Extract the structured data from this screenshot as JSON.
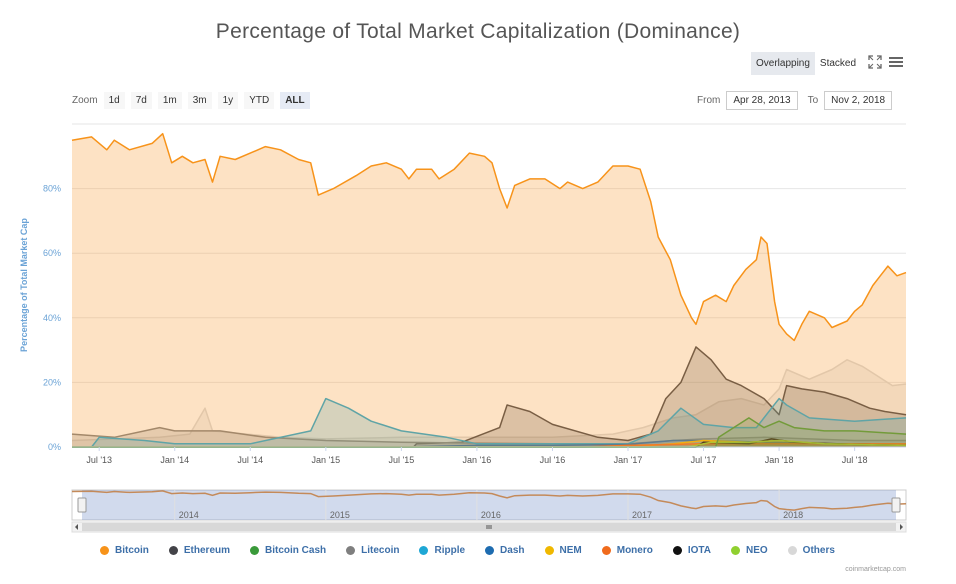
{
  "page": {
    "title": "Percentage of Total Market Capitalization (Dominance)"
  },
  "toolbar": {
    "modes": [
      {
        "label": "Overlapping",
        "active": true
      },
      {
        "label": "Stacked",
        "active": false
      }
    ],
    "icons": [
      "fullscreen-icon",
      "menu-icon"
    ]
  },
  "zoom": {
    "label": "Zoom",
    "buttons": [
      {
        "label": "1d",
        "active": false
      },
      {
        "label": "7d",
        "active": false
      },
      {
        "label": "1m",
        "active": false
      },
      {
        "label": "3m",
        "active": false
      },
      {
        "label": "1y",
        "active": false
      },
      {
        "label": "YTD",
        "active": false
      },
      {
        "label": "ALL",
        "active": true
      }
    ]
  },
  "range": {
    "from_label": "From",
    "from_value": "Apr 28, 2013",
    "to_label": "To",
    "to_value": "Nov 2, 2018"
  },
  "credits": "coinmarketcap.com",
  "chart_data": {
    "type": "area",
    "title": "Percentage of Total Market Capitalization (Dominance)",
    "ylabel": "Percentage of Total Market Cap",
    "xlabel": "",
    "x_start": 2013.32,
    "x_end": 2018.84,
    "ylim": [
      0,
      100
    ],
    "y_ticks": [
      {
        "value": 0,
        "label": "0%"
      },
      {
        "value": 20,
        "label": "20%"
      },
      {
        "value": 40,
        "label": "40%"
      },
      {
        "value": 60,
        "label": "60%"
      },
      {
        "value": 80,
        "label": "80%"
      }
    ],
    "x_ticks": [
      {
        "value": 2013.5,
        "label": "Jul '13"
      },
      {
        "value": 2014.0,
        "label": "Jan '14"
      },
      {
        "value": 2014.5,
        "label": "Jul '14"
      },
      {
        "value": 2015.0,
        "label": "Jan '15"
      },
      {
        "value": 2015.5,
        "label": "Jul '15"
      },
      {
        "value": 2016.0,
        "label": "Jan '16"
      },
      {
        "value": 2016.5,
        "label": "Jul '16"
      },
      {
        "value": 2017.0,
        "label": "Jan '17"
      },
      {
        "value": 2017.5,
        "label": "Jul '17"
      },
      {
        "value": 2018.0,
        "label": "Jan '18"
      },
      {
        "value": 2018.5,
        "label": "Jul '18"
      }
    ],
    "navigator_ticks": [
      {
        "value": 2014.0,
        "label": "2014"
      },
      {
        "value": 2015.0,
        "label": "2015"
      },
      {
        "value": 2016.0,
        "label": "2016"
      },
      {
        "value": 2017.0,
        "label": "2017"
      },
      {
        "value": 2018.0,
        "label": "2018"
      }
    ],
    "series": [
      {
        "name": "Others",
        "color": "#d8d8d8",
        "fill": "rgba(216,216,216,0.35)",
        "points": [
          [
            2013.32,
            2
          ],
          [
            2013.9,
            3
          ],
          [
            2014.1,
            4
          ],
          [
            2014.2,
            12
          ],
          [
            2014.25,
            5
          ],
          [
            2014.7,
            3
          ],
          [
            2015.0,
            2.5
          ],
          [
            2015.5,
            3
          ],
          [
            2016.0,
            3
          ],
          [
            2016.5,
            3
          ],
          [
            2016.9,
            4
          ],
          [
            2017.1,
            6
          ],
          [
            2017.3,
            9
          ],
          [
            2017.45,
            10
          ],
          [
            2017.6,
            14
          ],
          [
            2017.75,
            15
          ],
          [
            2017.9,
            13
          ],
          [
            2018.0,
            18
          ],
          [
            2018.05,
            24
          ],
          [
            2018.2,
            21
          ],
          [
            2018.35,
            24
          ],
          [
            2018.45,
            27
          ],
          [
            2018.55,
            25
          ],
          [
            2018.65,
            22
          ],
          [
            2018.75,
            19
          ],
          [
            2018.84,
            19.5
          ]
        ]
      },
      {
        "name": "Ethereum",
        "color": "#434348",
        "fill": "rgba(67,67,72,0.25)",
        "points": [
          [
            2013.32,
            0
          ],
          [
            2015.58,
            0
          ],
          [
            2015.6,
            1
          ],
          [
            2015.9,
            1.5
          ],
          [
            2016.15,
            6
          ],
          [
            2016.2,
            13
          ],
          [
            2016.35,
            11
          ],
          [
            2016.5,
            7
          ],
          [
            2016.8,
            3
          ],
          [
            2017.0,
            2
          ],
          [
            2017.15,
            4
          ],
          [
            2017.25,
            15
          ],
          [
            2017.35,
            20
          ],
          [
            2017.45,
            31
          ],
          [
            2017.55,
            27
          ],
          [
            2017.65,
            21
          ],
          [
            2017.75,
            19
          ],
          [
            2017.9,
            15
          ],
          [
            2018.0,
            10
          ],
          [
            2018.05,
            19
          ],
          [
            2018.15,
            18
          ],
          [
            2018.3,
            17
          ],
          [
            2018.45,
            15
          ],
          [
            2018.6,
            12
          ],
          [
            2018.7,
            11
          ],
          [
            2018.84,
            10
          ]
        ]
      },
      {
        "name": "Litecoin",
        "color": "#7f7f7f",
        "fill": "rgba(127,127,127,0.25)",
        "points": [
          [
            2013.32,
            4
          ],
          [
            2013.6,
            3
          ],
          [
            2013.9,
            6
          ],
          [
            2014.0,
            5
          ],
          [
            2014.3,
            5
          ],
          [
            2014.6,
            3
          ],
          [
            2015.0,
            2
          ],
          [
            2015.5,
            1.5
          ],
          [
            2016.0,
            1.2
          ],
          [
            2016.5,
            1
          ],
          [
            2017.0,
            1
          ],
          [
            2017.3,
            2
          ],
          [
            2017.5,
            2.5
          ],
          [
            2017.9,
            3
          ],
          [
            2018.2,
            2.5
          ],
          [
            2018.5,
            2
          ],
          [
            2018.84,
            2
          ]
        ]
      },
      {
        "name": "Ripple",
        "color": "#1ea7d5",
        "fill": "rgba(30,167,213,0.25)",
        "points": [
          [
            2013.32,
            0
          ],
          [
            2013.45,
            0
          ],
          [
            2013.5,
            3
          ],
          [
            2013.8,
            2
          ],
          [
            2014.0,
            1
          ],
          [
            2014.5,
            1
          ],
          [
            2014.9,
            5
          ],
          [
            2015.0,
            15
          ],
          [
            2015.15,
            12
          ],
          [
            2015.3,
            8
          ],
          [
            2015.5,
            5
          ],
          [
            2015.8,
            3
          ],
          [
            2016.0,
            1
          ],
          [
            2016.5,
            1
          ],
          [
            2017.0,
            1
          ],
          [
            2017.2,
            5
          ],
          [
            2017.35,
            12
          ],
          [
            2017.5,
            7
          ],
          [
            2017.7,
            6
          ],
          [
            2017.85,
            6
          ],
          [
            2017.95,
            12
          ],
          [
            2018.0,
            15
          ],
          [
            2018.05,
            13
          ],
          [
            2018.2,
            9
          ],
          [
            2018.5,
            8
          ],
          [
            2018.84,
            9
          ]
        ]
      },
      {
        "name": "Dash",
        "color": "#1e6cb0",
        "fill": "rgba(30,108,176,0.2)",
        "points": [
          [
            2013.32,
            0
          ],
          [
            2015.5,
            0
          ],
          [
            2016.0,
            0.5
          ],
          [
            2016.5,
            0.5
          ],
          [
            2017.0,
            0.8
          ],
          [
            2017.3,
            2
          ],
          [
            2017.5,
            2
          ],
          [
            2017.9,
            1.5
          ],
          [
            2018.3,
            1
          ],
          [
            2018.84,
            0.8
          ]
        ]
      },
      {
        "name": "NEM",
        "color": "#f0b800",
        "fill": "rgba(240,184,0,0.2)",
        "points": [
          [
            2013.32,
            0
          ],
          [
            2017.0,
            0
          ],
          [
            2017.3,
            1
          ],
          [
            2017.5,
            2
          ],
          [
            2017.8,
            1.5
          ],
          [
            2018.0,
            2
          ],
          [
            2018.3,
            1
          ],
          [
            2018.84,
            0.5
          ]
        ]
      },
      {
        "name": "Monero",
        "color": "#f06b1d",
        "fill": "rgba(240,107,29,0.2)",
        "points": [
          [
            2013.32,
            0
          ],
          [
            2016.7,
            0
          ],
          [
            2017.0,
            0.5
          ],
          [
            2017.5,
            1
          ],
          [
            2018.0,
            1
          ],
          [
            2018.84,
            1
          ]
        ]
      },
      {
        "name": "IOTA",
        "color": "#111111",
        "fill": "rgba(17,17,17,0.2)",
        "points": [
          [
            2013.32,
            0
          ],
          [
            2017.45,
            0
          ],
          [
            2017.5,
            1.5
          ],
          [
            2017.8,
            1
          ],
          [
            2017.95,
            2.5
          ],
          [
            2018.1,
            1.5
          ],
          [
            2018.5,
            0.8
          ],
          [
            2018.84,
            0.5
          ]
        ]
      },
      {
        "name": "NEO",
        "color": "#90d030",
        "fill": "rgba(144,208,48,0.2)",
        "points": [
          [
            2013.32,
            0
          ],
          [
            2017.4,
            0
          ],
          [
            2017.55,
            1.5
          ],
          [
            2017.8,
            1.5
          ],
          [
            2018.0,
            2
          ],
          [
            2018.3,
            1
          ],
          [
            2018.84,
            0.5
          ]
        ]
      },
      {
        "name": "Bitcoin Cash",
        "color": "#3a9a3a",
        "fill": "rgba(58,154,58,0.2)",
        "points": [
          [
            2013.32,
            0
          ],
          [
            2017.58,
            0
          ],
          [
            2017.6,
            3
          ],
          [
            2017.8,
            9
          ],
          [
            2017.9,
            6
          ],
          [
            2018.0,
            8
          ],
          [
            2018.1,
            6
          ],
          [
            2018.3,
            5
          ],
          [
            2018.5,
            5
          ],
          [
            2018.84,
            4
          ]
        ]
      },
      {
        "name": "Bitcoin",
        "color": "#f7931a",
        "fill": "rgba(247,160,60,0.3)",
        "points": [
          [
            2013.32,
            95
          ],
          [
            2013.45,
            96
          ],
          [
            2013.55,
            92
          ],
          [
            2013.6,
            95
          ],
          [
            2013.7,
            92
          ],
          [
            2013.85,
            94
          ],
          [
            2013.92,
            97
          ],
          [
            2013.98,
            88
          ],
          [
            2014.05,
            90
          ],
          [
            2014.12,
            88
          ],
          [
            2014.2,
            89
          ],
          [
            2014.25,
            82
          ],
          [
            2014.3,
            90
          ],
          [
            2014.4,
            89
          ],
          [
            2014.5,
            91
          ],
          [
            2014.6,
            93
          ],
          [
            2014.7,
            92
          ],
          [
            2014.82,
            89
          ],
          [
            2014.9,
            88
          ],
          [
            2014.95,
            78
          ],
          [
            2015.05,
            80
          ],
          [
            2015.2,
            84
          ],
          [
            2015.3,
            87
          ],
          [
            2015.4,
            88
          ],
          [
            2015.5,
            86
          ],
          [
            2015.55,
            83
          ],
          [
            2015.6,
            86
          ],
          [
            2015.7,
            86
          ],
          [
            2015.75,
            83
          ],
          [
            2015.85,
            86
          ],
          [
            2015.95,
            91
          ],
          [
            2016.05,
            90
          ],
          [
            2016.1,
            88
          ],
          [
            2016.15,
            80
          ],
          [
            2016.2,
            74
          ],
          [
            2016.25,
            81
          ],
          [
            2016.35,
            83
          ],
          [
            2016.45,
            83
          ],
          [
            2016.55,
            80
          ],
          [
            2016.6,
            82
          ],
          [
            2016.7,
            80
          ],
          [
            2016.8,
            82
          ],
          [
            2016.9,
            87
          ],
          [
            2017.0,
            87
          ],
          [
            2017.08,
            86
          ],
          [
            2017.15,
            76
          ],
          [
            2017.2,
            65
          ],
          [
            2017.28,
            58
          ],
          [
            2017.35,
            47
          ],
          [
            2017.42,
            40
          ],
          [
            2017.45,
            38
          ],
          [
            2017.5,
            45
          ],
          [
            2017.58,
            47
          ],
          [
            2017.65,
            45
          ],
          [
            2017.7,
            50
          ],
          [
            2017.78,
            55
          ],
          [
            2017.85,
            58
          ],
          [
            2017.88,
            65
          ],
          [
            2017.92,
            63
          ],
          [
            2017.97,
            45
          ],
          [
            2018.0,
            38
          ],
          [
            2018.05,
            35
          ],
          [
            2018.1,
            33
          ],
          [
            2018.15,
            38
          ],
          [
            2018.2,
            42
          ],
          [
            2018.3,
            40
          ],
          [
            2018.35,
            37
          ],
          [
            2018.45,
            39
          ],
          [
            2018.5,
            42
          ],
          [
            2018.55,
            44
          ],
          [
            2018.62,
            50
          ],
          [
            2018.67,
            53
          ],
          [
            2018.72,
            56
          ],
          [
            2018.78,
            53
          ],
          [
            2018.84,
            54
          ]
        ]
      }
    ],
    "legend": [
      "Bitcoin",
      "Ethereum",
      "Bitcoin Cash",
      "Litecoin",
      "Ripple",
      "Dash",
      "NEM",
      "Monero",
      "IOTA",
      "NEO",
      "Others"
    ]
  }
}
